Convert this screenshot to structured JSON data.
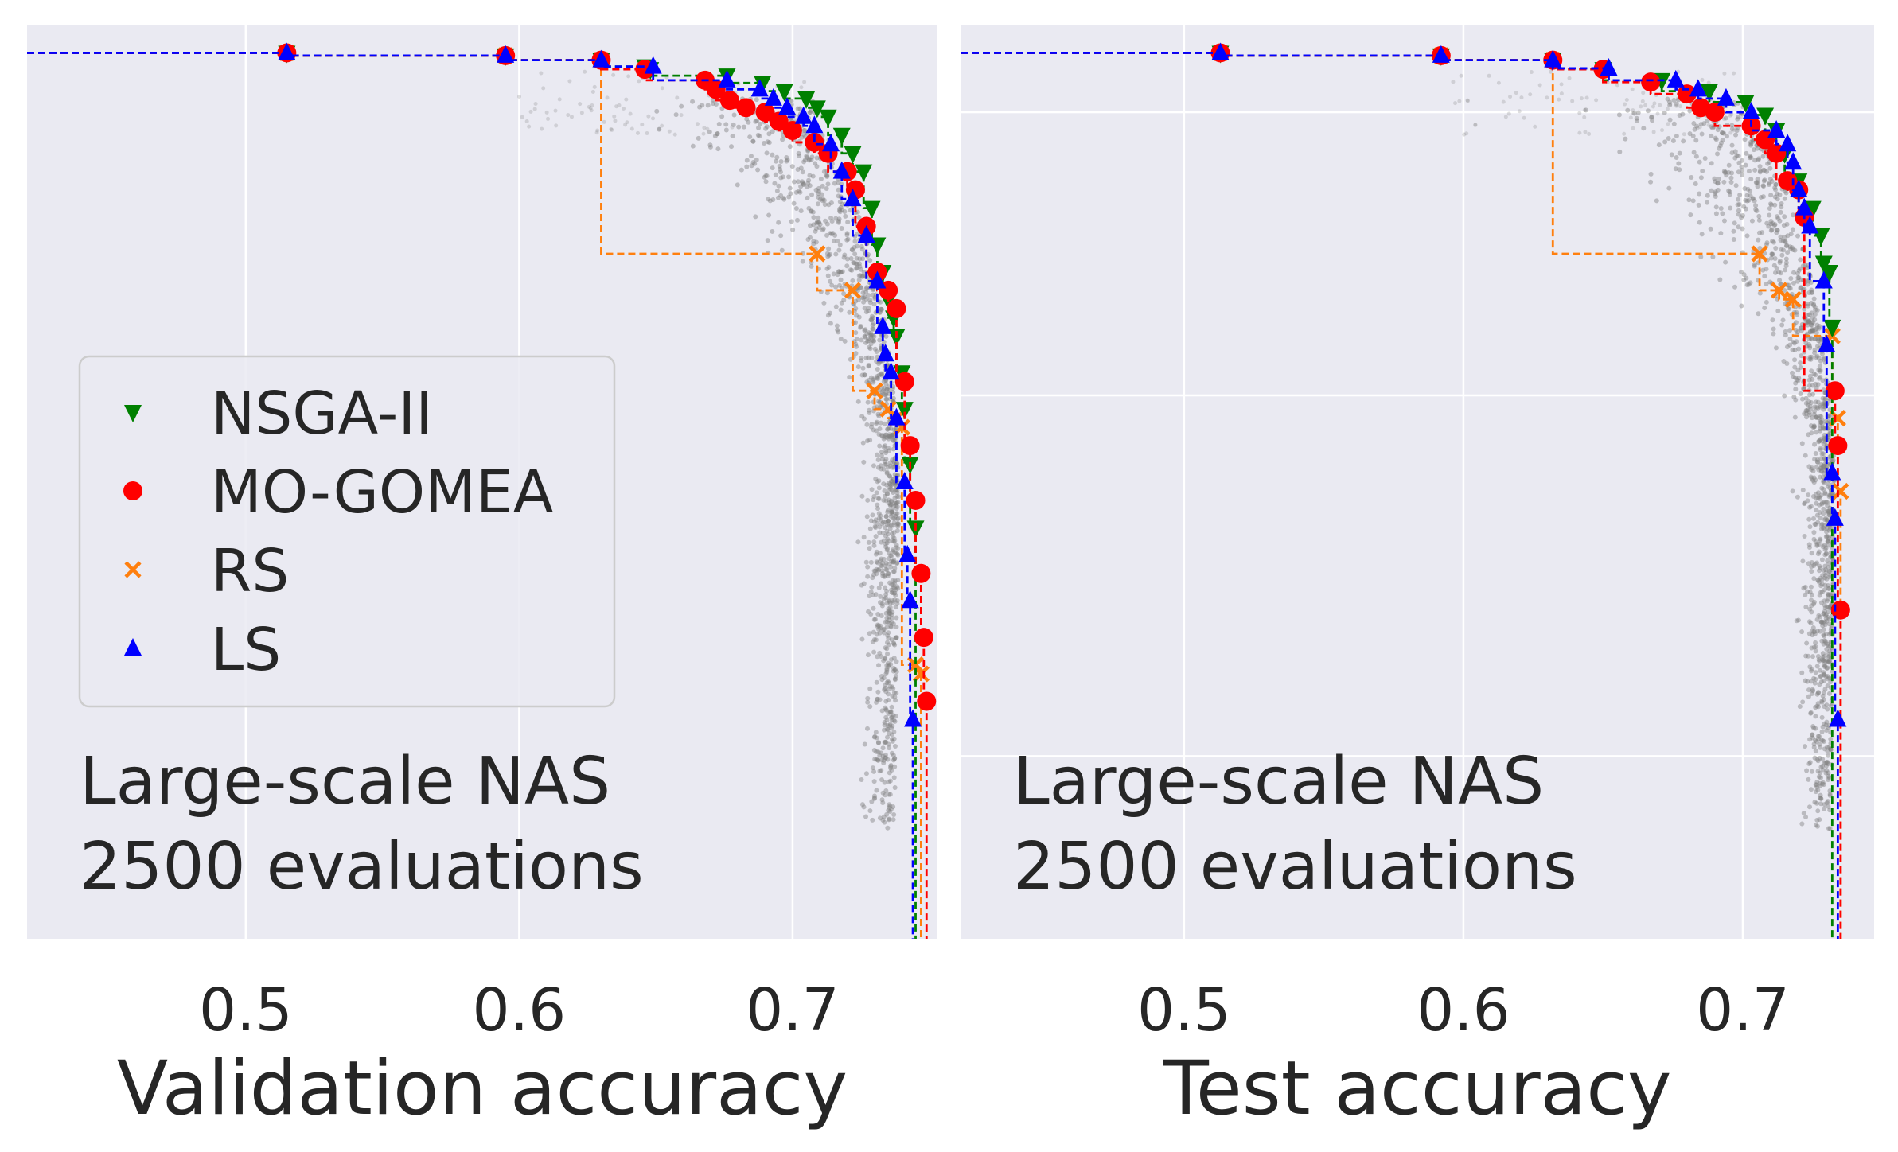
{
  "series_styles": {
    "NSGA-II": {
      "color": "#008000",
      "marker": "triangle-down"
    },
    "MO-GOMEA": {
      "color": "#ff0000",
      "marker": "circle"
    },
    "RS": {
      "color": "#ff7f0e",
      "marker": "x"
    },
    "LS": {
      "color": "#0000ff",
      "marker": "triangle-up"
    }
  },
  "background_cloud": {
    "color": "#808080",
    "description_visible": false
  },
  "chart_data": [
    {
      "type": "scatter",
      "title": "",
      "xlabel": "Validation accuracy",
      "ylabel": "",
      "xlim": [
        0.42,
        0.753
      ],
      "ylim": [
        0.0,
        1.0
      ],
      "xticks": [
        0.5,
        0.6,
        0.7
      ],
      "xtick_labels": [
        "0.5",
        "0.6",
        "0.7"
      ],
      "grid": true,
      "legend": {
        "placement": "center-left",
        "entries": [
          "NSGA-II",
          "MO-GOMEA",
          "RS",
          "LS"
        ]
      },
      "annotation": [
        "Large-scale NAS",
        "2500 evaluations"
      ],
      "series": [
        {
          "name": "NSGA-II",
          "x": [
            0.515,
            0.595,
            0.63,
            0.646,
            0.648,
            0.676,
            0.689,
            0.697,
            0.705,
            0.709,
            0.713,
            0.718,
            0.722,
            0.726,
            0.729,
            0.731,
            0.733,
            0.735,
            0.737,
            0.738,
            0.74,
            0.741,
            0.743,
            0.745
          ],
          "y": [
            0.97,
            0.967,
            0.962,
            0.955,
            0.952,
            0.945,
            0.937,
            0.928,
            0.92,
            0.91,
            0.9,
            0.88,
            0.86,
            0.84,
            0.8,
            0.76,
            0.73,
            0.7,
            0.68,
            0.66,
            0.62,
            0.58,
            0.52,
            0.45
          ]
        },
        {
          "name": "MO-GOMEA",
          "x": [
            0.515,
            0.595,
            0.63,
            0.646,
            0.668,
            0.672,
            0.677,
            0.683,
            0.69,
            0.695,
            0.7,
            0.708,
            0.713,
            0.72,
            0.723,
            0.727,
            0.731,
            0.735,
            0.738,
            0.741,
            0.743,
            0.745,
            0.747,
            0.748,
            0.749
          ],
          "y": [
            0.97,
            0.967,
            0.962,
            0.952,
            0.94,
            0.93,
            0.918,
            0.91,
            0.905,
            0.895,
            0.885,
            0.872,
            0.86,
            0.84,
            0.82,
            0.78,
            0.73,
            0.71,
            0.69,
            0.61,
            0.54,
            0.48,
            0.4,
            0.33,
            0.26
          ]
        },
        {
          "name": "RS",
          "x": [
            0.515,
            0.595,
            0.63,
            0.709,
            0.722,
            0.73,
            0.735,
            0.738,
            0.74,
            0.745,
            0.747
          ],
          "y": [
            0.97,
            0.967,
            0.962,
            0.75,
            0.71,
            0.6,
            0.58,
            0.57,
            0.56,
            0.3,
            0.29
          ]
        },
        {
          "name": "LS",
          "x": [
            0.515,
            0.595,
            0.63,
            0.649,
            0.676,
            0.688,
            0.693,
            0.698,
            0.704,
            0.708,
            0.714,
            0.718,
            0.722,
            0.727,
            0.731,
            0.733,
            0.734,
            0.736,
            0.738,
            0.741,
            0.742,
            0.743,
            0.744
          ],
          "y": [
            0.97,
            0.967,
            0.962,
            0.955,
            0.94,
            0.93,
            0.92,
            0.91,
            0.9,
            0.89,
            0.87,
            0.84,
            0.81,
            0.77,
            0.72,
            0.67,
            0.64,
            0.62,
            0.57,
            0.5,
            0.42,
            0.37,
            0.24
          ]
        }
      ]
    },
    {
      "type": "scatter",
      "title": "",
      "xlabel": "Test accuracy",
      "ylabel": "",
      "xlim": [
        0.42,
        0.747
      ],
      "ylim": [
        0.0,
        1.0
      ],
      "xticks": [
        0.5,
        0.6,
        0.7
      ],
      "xtick_labels": [
        "0.5",
        "0.6",
        "0.7"
      ],
      "grid": true,
      "annotation": [
        "Large-scale NAS",
        "2500 evaluations"
      ],
      "series": [
        {
          "name": "NSGA-II",
          "x": [
            0.513,
            0.592,
            0.632,
            0.65,
            0.671,
            0.688,
            0.701,
            0.708,
            0.712,
            0.715,
            0.72,
            0.725,
            0.728,
            0.729,
            0.731,
            0.732
          ],
          "y": [
            0.97,
            0.967,
            0.962,
            0.952,
            0.94,
            0.928,
            0.916,
            0.902,
            0.885,
            0.86,
            0.83,
            0.8,
            0.77,
            0.74,
            0.73,
            0.67
          ]
        },
        {
          "name": "MO-GOMEA",
          "x": [
            0.513,
            0.592,
            0.632,
            0.65,
            0.667,
            0.68,
            0.685,
            0.69,
            0.703,
            0.708,
            0.712,
            0.716,
            0.72,
            0.722,
            0.733,
            0.734,
            0.735
          ],
          "y": [
            0.97,
            0.967,
            0.962,
            0.952,
            0.938,
            0.925,
            0.91,
            0.905,
            0.89,
            0.875,
            0.86,
            0.83,
            0.82,
            0.79,
            0.6,
            0.54,
            0.36
          ]
        },
        {
          "name": "RS",
          "x": [
            0.513,
            0.592,
            0.632,
            0.706,
            0.713,
            0.718,
            0.732,
            0.734,
            0.735
          ],
          "y": [
            0.97,
            0.967,
            0.962,
            0.75,
            0.71,
            0.7,
            0.66,
            0.57,
            0.49
          ]
        },
        {
          "name": "LS",
          "x": [
            0.513,
            0.592,
            0.632,
            0.652,
            0.676,
            0.684,
            0.694,
            0.703,
            0.712,
            0.716,
            0.718,
            0.72,
            0.722,
            0.724,
            0.729,
            0.73,
            0.732,
            0.733,
            0.734
          ],
          "y": [
            0.97,
            0.967,
            0.962,
            0.953,
            0.94,
            0.93,
            0.92,
            0.905,
            0.885,
            0.87,
            0.85,
            0.82,
            0.8,
            0.78,
            0.72,
            0.65,
            0.51,
            0.46,
            0.24
          ]
        }
      ]
    }
  ]
}
